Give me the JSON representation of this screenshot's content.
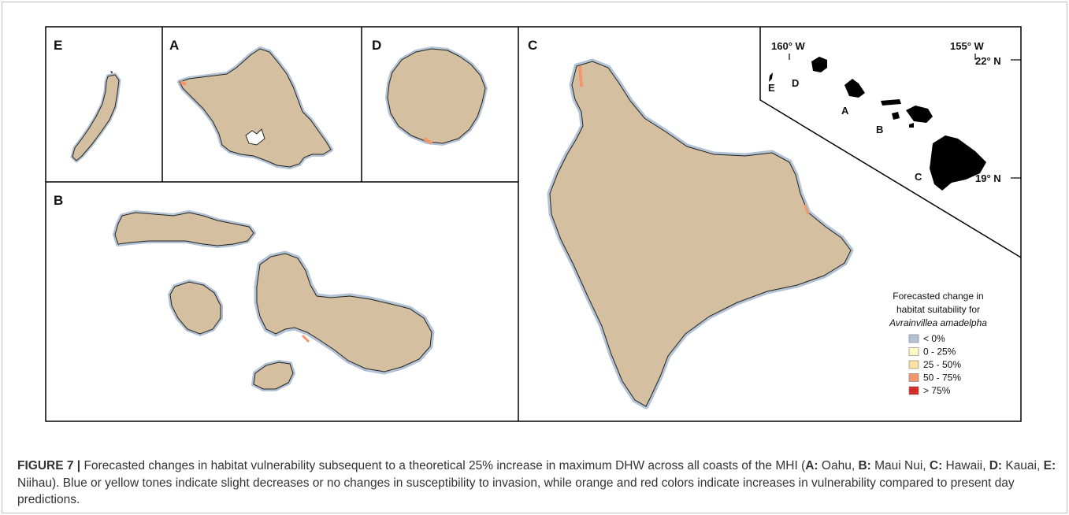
{
  "panels": {
    "E": "E",
    "A": "A",
    "D": "D",
    "C": "C",
    "B": "B"
  },
  "inset": {
    "lon_left": "160° W",
    "lon_right": "155° W",
    "lat_top": "22° N",
    "lat_bottom": "19° N",
    "labels": [
      "E",
      "D",
      "A",
      "B",
      "C"
    ]
  },
  "legend": {
    "title_line1": "Forecasted change in",
    "title_line2": "habitat suitability for",
    "title_line3": "Avrainvillea amadelpha",
    "items": [
      {
        "label": "< 0%",
        "color": "#b3c3d4"
      },
      {
        "label": "0 - 25%",
        "color": "#fdfbc4"
      },
      {
        "label": "25 - 50%",
        "color": "#fce1a2"
      },
      {
        "label": "50 - 75%",
        "color": "#f4956c"
      },
      {
        "label": "> 75%",
        "color": "#d62b27"
      }
    ]
  },
  "colors": {
    "land": "#d4c0a1",
    "outline": "#222222",
    "frame": "#000000"
  },
  "caption": {
    "figure_label": "FIGURE 7 |",
    "text1": " Forecasted changes in habitat vulnerability subsequent to a theoretical 25% increase in maximum DHW across all coasts of the MHI (",
    "a_key": "A:",
    "a_val": " Oahu, ",
    "b_key": "B:",
    "b_val": " Maui Nui, ",
    "c_key": "C:",
    "c_val": " Hawaii, ",
    "d_key": "D:",
    "d_val": " Kauai, ",
    "e_key": "E:",
    "e_val": " Niihau). Blue or yellow tones indicate slight decreases or no changes in susceptibility to invasion, while orange and red colors indicate increases in vulnerability compared to present day predictions."
  }
}
